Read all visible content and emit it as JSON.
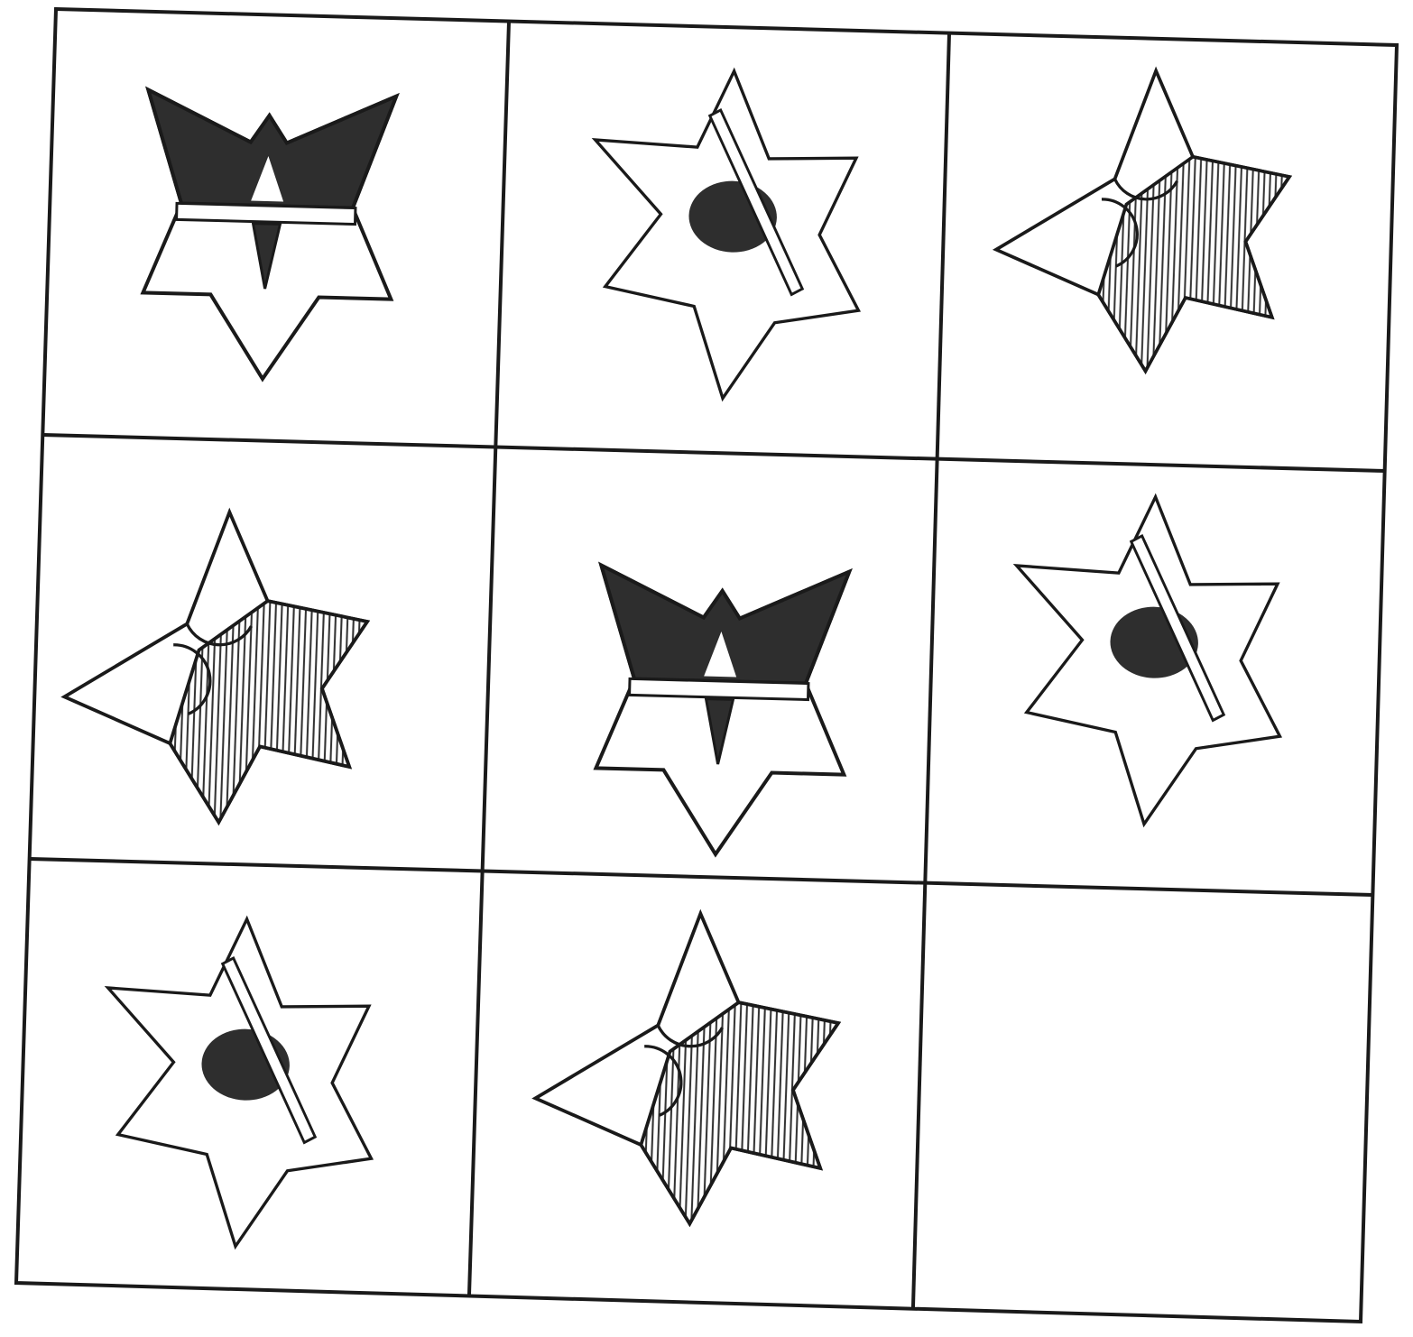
{
  "puzzle": {
    "rows": 3,
    "cols": 3,
    "colors": {
      "line": "#1a1a1a",
      "dark_fill": "#2e2e2e",
      "hatch": "#333333",
      "paper": "#ffffff"
    },
    "cells": [
      {
        "row": 0,
        "col": 0,
        "figure": "star-bowtie"
      },
      {
        "row": 0,
        "col": 1,
        "figure": "star-ellipse-bar"
      },
      {
        "row": 0,
        "col": 2,
        "figure": "star-hatched-circles"
      },
      {
        "row": 1,
        "col": 0,
        "figure": "star-hatched-circles"
      },
      {
        "row": 1,
        "col": 1,
        "figure": "star-bowtie"
      },
      {
        "row": 1,
        "col": 2,
        "figure": "star-ellipse-bar"
      },
      {
        "row": 2,
        "col": 0,
        "figure": "star-ellipse-bar"
      },
      {
        "row": 2,
        "col": 1,
        "figure": "star-hatched-circles"
      },
      {
        "row": 2,
        "col": 2,
        "figure": "empty"
      }
    ]
  }
}
